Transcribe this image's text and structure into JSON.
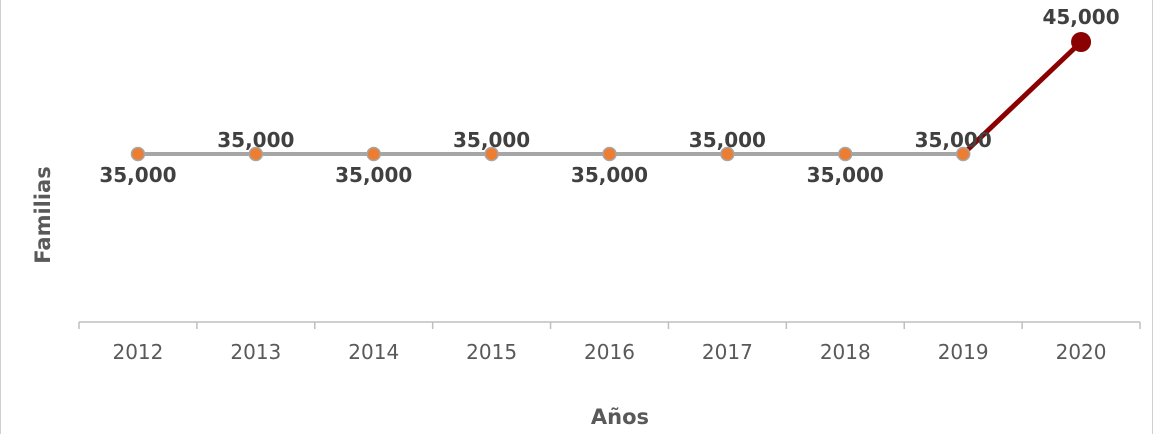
{
  "chart_data": {
    "type": "line",
    "title": "",
    "xlabel": "Años",
    "ylabel": "Familias",
    "categories": [
      "2012",
      "2013",
      "2014",
      "2015",
      "2016",
      "2017",
      "2018",
      "2019",
      "2020"
    ],
    "series": [
      {
        "values": [
          35000,
          35000,
          35000,
          35000,
          35000,
          35000,
          35000,
          35000,
          45000
        ],
        "data_labels": [
          "35,000",
          "35,000",
          "35,000",
          "35,000",
          "35,000",
          "35,000",
          "35,000",
          "35,000",
          "45,000"
        ]
      }
    ],
    "ylim": [
      20000,
      47500
    ],
    "grid": false,
    "colors": {
      "line": "#a6a6a6",
      "marker": "#ed7d31",
      "highlight": "#8b0000",
      "label": "#404040",
      "axis": "#bfbfbf"
    }
  }
}
